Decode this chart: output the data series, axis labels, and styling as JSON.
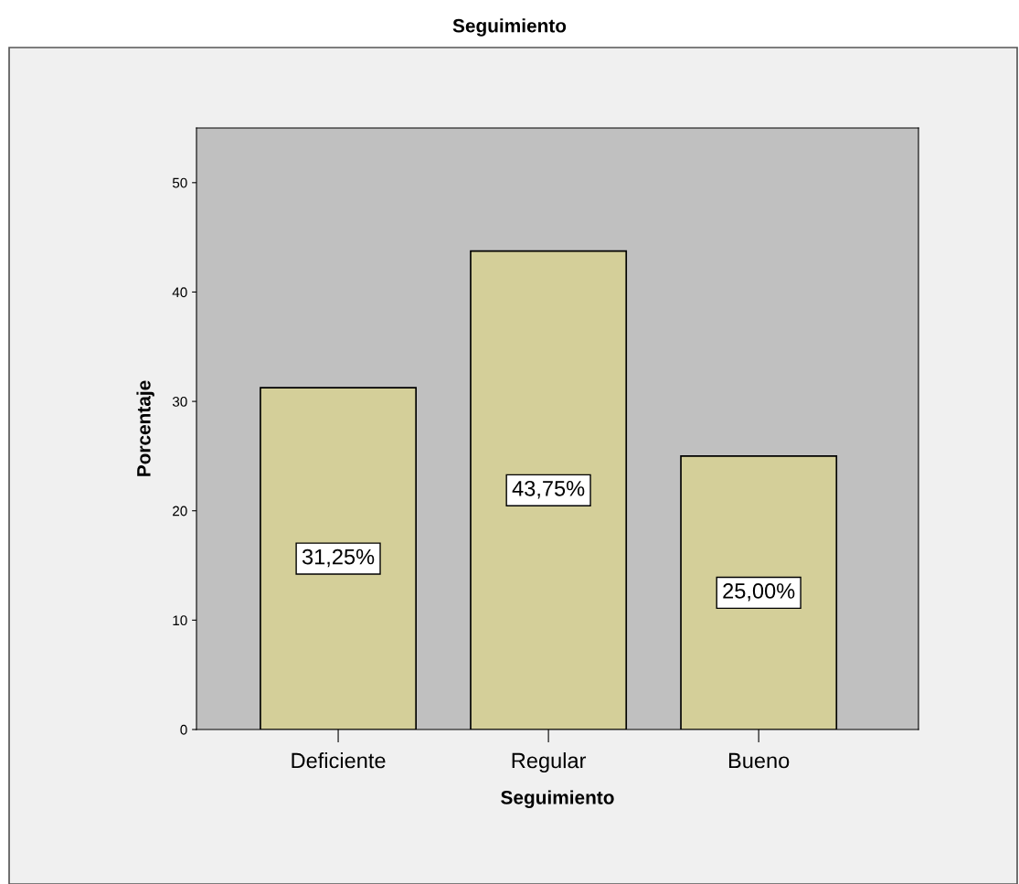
{
  "chart_data": {
    "type": "bar",
    "title": "Seguimiento",
    "xlabel": "Seguimiento",
    "ylabel": "Porcentaje",
    "categories": [
      "Deficiente",
      "Regular",
      "Bueno"
    ],
    "values": [
      31.25,
      43.75,
      25.0
    ],
    "value_labels": [
      "31,25%",
      "43,75%",
      "25,00%"
    ],
    "color": "#d4cf99",
    "ylim": [
      0,
      55
    ],
    "yticks": [
      0,
      10,
      20,
      30,
      40,
      50
    ],
    "grid": false,
    "legend": false
  }
}
